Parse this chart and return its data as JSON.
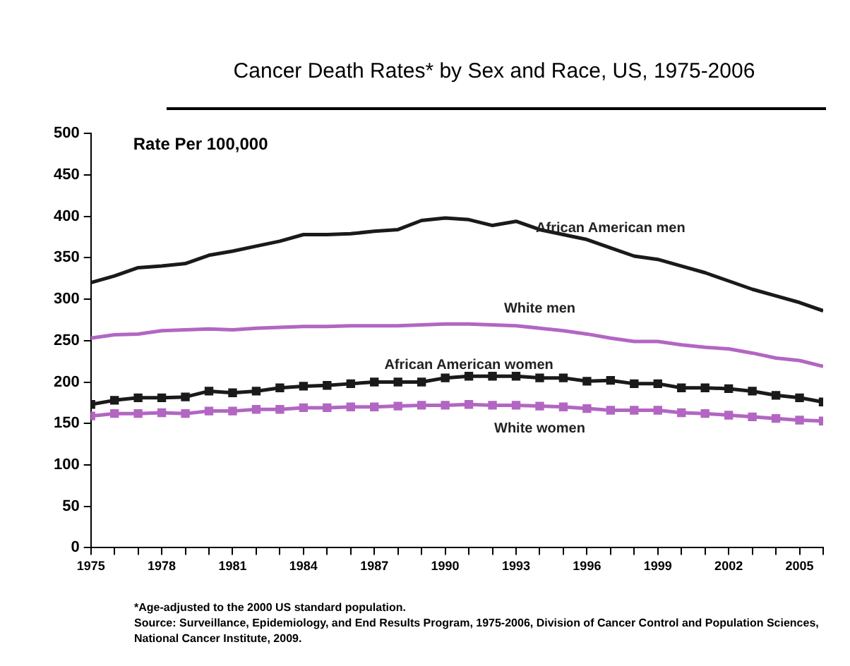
{
  "chart_data": {
    "type": "line",
    "title": "Cancer Death Rates* by Sex and Race, US, 1975-2006",
    "ylabel": "Rate Per 100,000",
    "x": [
      1975,
      1976,
      1977,
      1978,
      1979,
      1980,
      1981,
      1982,
      1983,
      1984,
      1985,
      1986,
      1987,
      1988,
      1989,
      1990,
      1991,
      1992,
      1993,
      1994,
      1995,
      1996,
      1997,
      1998,
      1999,
      2000,
      2001,
      2002,
      2003,
      2004,
      2005,
      2006
    ],
    "series": [
      {
        "name": "African American men",
        "color": "#1a1a1a",
        "marker": "none",
        "values": [
          320,
          328,
          338,
          340,
          343,
          353,
          358,
          364,
          370,
          378,
          378,
          379,
          382,
          384,
          395,
          398,
          396,
          389,
          394,
          384,
          378,
          372,
          362,
          352,
          348,
          340,
          332,
          322,
          312,
          304,
          296,
          286
        ]
      },
      {
        "name": "White men",
        "color": "#b266c2",
        "marker": "none",
        "values": [
          253,
          257,
          258,
          262,
          263,
          264,
          263,
          265,
          266,
          267,
          267,
          268,
          268,
          268,
          269,
          270,
          270,
          269,
          268,
          265,
          262,
          258,
          253,
          249,
          249,
          245,
          242,
          240,
          235,
          229,
          226,
          219
        ]
      },
      {
        "name": "African American women",
        "color": "#1a1a1a",
        "marker": "square",
        "values": [
          173,
          178,
          181,
          181,
          182,
          189,
          187,
          189,
          193,
          195,
          196,
          198,
          200,
          200,
          200,
          205,
          207,
          207,
          207,
          205,
          205,
          201,
          202,
          198,
          198,
          193,
          193,
          192,
          189,
          184,
          181,
          176
        ]
      },
      {
        "name": "White women",
        "color": "#b266c2",
        "marker": "square",
        "values": [
          159,
          162,
          162,
          163,
          162,
          165,
          165,
          167,
          167,
          169,
          169,
          170,
          170,
          171,
          172,
          172,
          173,
          172,
          172,
          171,
          170,
          168,
          166,
          166,
          166,
          163,
          162,
          160,
          158,
          156,
          154,
          153
        ]
      }
    ],
    "xlim": [
      1975,
      2006
    ],
    "xticks": [
      1975,
      {
        "value": 1976,
        "label": null
      },
      {
        "value": 1977,
        "label": null
      },
      1978,
      {
        "value": 1979,
        "label": null
      },
      {
        "value": 1980,
        "label": null
      },
      1981,
      {
        "value": 1982,
        "label": null
      },
      {
        "value": 1983,
        "label": null
      },
      1984,
      {
        "value": 1985,
        "label": null
      },
      {
        "value": 1986,
        "label": null
      },
      1987,
      {
        "value": 1988,
        "label": null
      },
      {
        "value": 1989,
        "label": null
      },
      1990,
      {
        "value": 1991,
        "label": null
      },
      {
        "value": 1992,
        "label": null
      },
      1993,
      {
        "value": 1994,
        "label": null
      },
      {
        "value": 1995,
        "label": null
      },
      1996,
      {
        "value": 1997,
        "label": null
      },
      {
        "value": 1998,
        "label": null
      },
      1999,
      {
        "value": 2000,
        "label": null
      },
      {
        "value": 2001,
        "label": null
      },
      2002,
      {
        "value": 2003,
        "label": null
      },
      {
        "value": 2004,
        "label": null
      },
      2005,
      {
        "value": 2006,
        "label": null
      }
    ],
    "ylim": [
      0,
      500
    ],
    "yticks": [
      0,
      50,
      100,
      150,
      200,
      250,
      300,
      350,
      400,
      450,
      500
    ],
    "grid": false,
    "legend": false,
    "line_style": "solid",
    "annotations": [
      "*Age-adjusted to the 2000 US standard population.",
      "Source: Surveillance, Epidemiology, and End Results Program, 1975-2006, Division of Cancer Control and Population Sciences, National Cancer Institute, 2009."
    ]
  }
}
